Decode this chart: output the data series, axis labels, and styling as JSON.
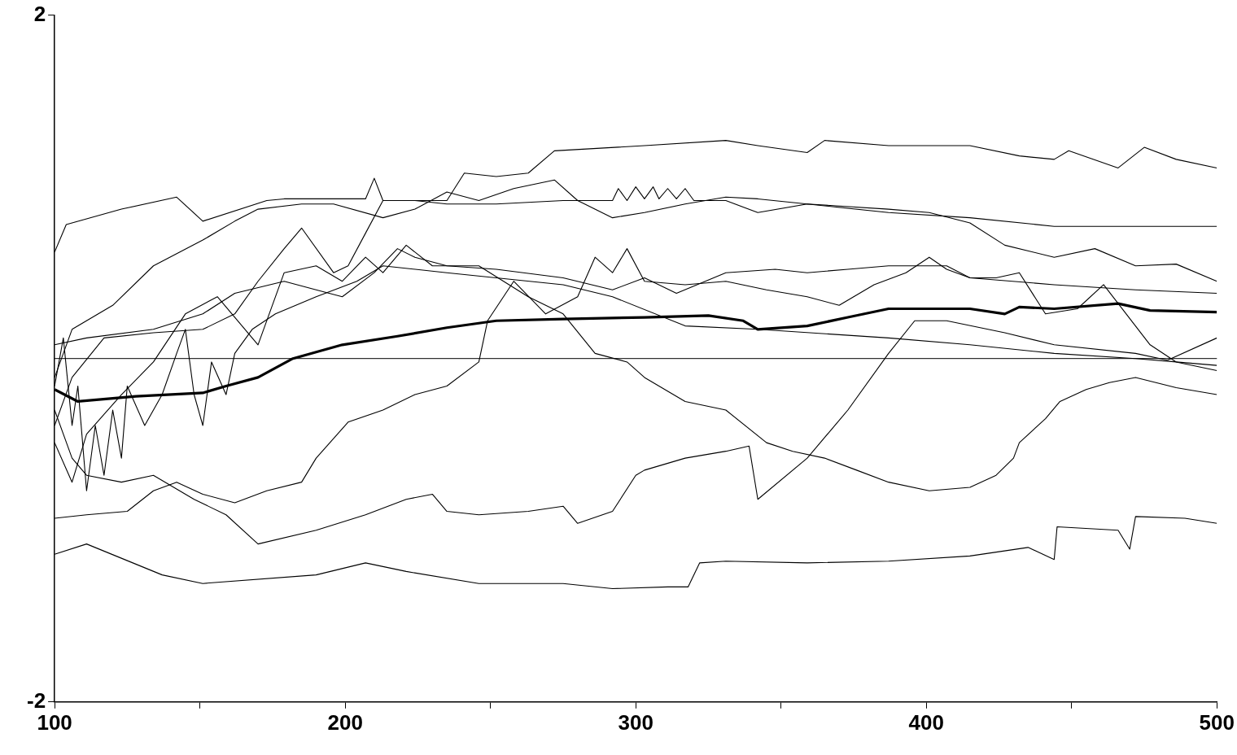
{
  "chart_data": {
    "type": "line",
    "xlim": [
      100,
      500
    ],
    "ylim": [
      -2,
      2
    ],
    "xticks": [
      100,
      {
        "value": 150,
        "label": null
      },
      200,
      {
        "value": 250,
        "label": null
      },
      300,
      {
        "value": 350,
        "label": null
      },
      400,
      {
        "value": 450,
        "label": null
      },
      500
    ],
    "yticks": [
      -2,
      2
    ],
    "grid": false,
    "legend": false,
    "marker": "none",
    "line_style": "solid",
    "ref_lines": [
      {
        "axis": "y",
        "value": 0,
        "color": "#000000"
      }
    ],
    "series": [
      {
        "color": "#000000",
        "x": [
          100,
          108,
          128,
          151,
          159,
          170,
          182,
          199,
          218,
          235,
          252,
          275,
          303,
          325,
          337,
          342,
          359,
          373,
          387,
          415,
          427,
          432,
          444,
          466,
          477,
          500
        ],
        "values": [
          -0.18,
          -0.25,
          -0.22,
          -0.2,
          -0.16,
          -0.11,
          0,
          0.08,
          0.13,
          0.18,
          0.22,
          0.23,
          0.24,
          0.25,
          0.22,
          0.17,
          0.19,
          0.24,
          0.29,
          0.29,
          0.26,
          0.3,
          0.29,
          0.32,
          0.28,
          0.27
        ]
      },
      {
        "color": "#000000",
        "x": [
          100,
          111,
          137,
          151,
          190,
          207,
          221,
          246,
          275,
          292,
          311,
          318,
          322,
          331,
          359,
          387,
          415,
          435,
          444,
          445,
          466,
          470,
          472,
          489,
          500
        ],
        "values": [
          -1.14,
          -1.08,
          -1.26,
          -1.31,
          -1.26,
          -1.19,
          -1.24,
          -1.31,
          -1.31,
          -1.34,
          -1.33,
          -1.33,
          -1.19,
          -1.18,
          -1.19,
          -1.18,
          -1.15,
          -1.1,
          -1.17,
          -0.98,
          -1,
          -1.11,
          -0.92,
          -0.93,
          -0.96
        ]
      },
      {
        "color": "#000000",
        "x": [
          100,
          104,
          123,
          142,
          151,
          173,
          179,
          207,
          210,
          213,
          235,
          241,
          252,
          263,
          272,
          303,
          331,
          342,
          359,
          365,
          387,
          415,
          432,
          444,
          449,
          466,
          475,
          486,
          500
        ],
        "values": [
          0.62,
          0.78,
          0.87,
          0.94,
          0.8,
          0.92,
          0.93,
          0.93,
          1.05,
          0.92,
          0.92,
          1.08,
          1.06,
          1.08,
          1.21,
          1.24,
          1.27,
          1.24,
          1.2,
          1.27,
          1.24,
          1.24,
          1.18,
          1.16,
          1.21,
          1.11,
          1.23,
          1.16,
          1.11
        ]
      },
      {
        "color": "#000000",
        "x": [
          100,
          106,
          120,
          134,
          151,
          162,
          170,
          185,
          196,
          213,
          224,
          235,
          246,
          258,
          272,
          280,
          292,
          303,
          317,
          331,
          342,
          359,
          387,
          415,
          444,
          500
        ],
        "values": [
          -0.11,
          0.17,
          0.31,
          0.54,
          0.69,
          0.8,
          0.87,
          0.9,
          0.9,
          0.82,
          0.87,
          0.97,
          0.92,
          0.99,
          1.04,
          0.92,
          0.82,
          0.85,
          0.9,
          0.94,
          0.93,
          0.9,
          0.85,
          0.82,
          0.77,
          0.77
        ]
      },
      {
        "color": "#000000",
        "x": [
          100,
          106,
          117,
          134,
          151,
          162,
          170,
          179,
          185,
          196,
          201,
          207,
          213,
          224,
          235,
          252,
          275,
          292,
          294,
          297,
          300,
          303,
          306,
          308,
          311,
          314,
          317,
          320,
          331,
          342,
          359,
          387,
          401,
          415,
          427,
          444,
          458,
          472,
          486,
          500
        ],
        "values": [
          -0.39,
          -0.11,
          0.12,
          0.15,
          0.17,
          0.26,
          0.45,
          0.64,
          0.76,
          0.5,
          0.54,
          0.73,
          0.92,
          0.92,
          0.9,
          0.9,
          0.92,
          0.92,
          0.99,
          0.92,
          1,
          0.93,
          1,
          0.93,
          0.99,
          0.93,
          0.99,
          0.92,
          0.92,
          0.85,
          0.9,
          0.87,
          0.85,
          0.79,
          0.66,
          0.59,
          0.64,
          0.54,
          0.55,
          0.45
        ]
      },
      {
        "color": "#000000",
        "x": [
          100,
          111,
          134,
          151,
          162,
          179,
          190,
          199,
          210,
          218,
          224,
          235,
          252,
          275,
          292,
          303,
          314,
          331,
          348,
          359,
          373,
          387,
          407,
          415,
          444,
          472,
          500
        ],
        "values": [
          0.08,
          0.12,
          0.17,
          0.26,
          0.38,
          0.45,
          0.4,
          0.36,
          0.5,
          0.64,
          0.59,
          0.54,
          0.52,
          0.47,
          0.4,
          0.47,
          0.38,
          0.5,
          0.52,
          0.5,
          0.52,
          0.54,
          0.54,
          0.47,
          0.43,
          0.4,
          0.38
        ]
      },
      {
        "color": "#000000",
        "x": [
          100,
          106,
          111,
          123,
          134,
          145,
          156,
          170,
          179,
          190,
          199,
          207,
          213,
          221,
          230,
          246,
          263,
          275,
          286,
          297,
          303,
          317,
          331,
          345,
          354,
          365,
          376,
          387,
          401,
          415,
          424,
          430,
          432,
          441,
          446,
          455,
          463,
          472,
          486,
          500
        ],
        "values": [
          -0.49,
          -0.72,
          -0.44,
          -0.21,
          -0.02,
          0.26,
          0.36,
          0.08,
          0.5,
          0.54,
          0.45,
          0.59,
          0.5,
          0.66,
          0.54,
          0.54,
          0.36,
          0.26,
          0.03,
          -0.02,
          -0.11,
          -0.25,
          -0.3,
          -0.49,
          -0.54,
          -0.58,
          -0.65,
          -0.72,
          -0.77,
          -0.75,
          -0.68,
          -0.58,
          -0.49,
          -0.35,
          -0.25,
          -0.18,
          -0.14,
          -0.11,
          -0.17,
          -0.21
        ]
      },
      {
        "color": "#000000",
        "x": [
          100,
          111,
          125,
          134,
          142,
          151,
          162,
          173,
          185,
          190,
          201,
          213,
          224,
          235,
          246,
          249,
          258,
          269,
          280,
          286,
          292,
          297,
          303,
          317,
          331,
          345,
          359,
          370,
          382,
          393,
          401,
          407,
          415,
          424,
          432,
          441,
          452,
          461,
          477,
          486,
          500
        ],
        "values": [
          -0.93,
          -0.91,
          -0.89,
          -0.77,
          -0.72,
          -0.79,
          -0.84,
          -0.77,
          -0.72,
          -0.58,
          -0.37,
          -0.3,
          -0.21,
          -0.16,
          -0.02,
          0.22,
          0.45,
          0.26,
          0.36,
          0.59,
          0.5,
          0.64,
          0.45,
          0.43,
          0.45,
          0.4,
          0.36,
          0.31,
          0.43,
          0.5,
          0.59,
          0.52,
          0.47,
          0.47,
          0.5,
          0.26,
          0.29,
          0.43,
          0.08,
          -0.02,
          -0.07
        ]
      },
      {
        "color": "#000000",
        "x": [
          100,
          106,
          111,
          123,
          134,
          148,
          159,
          170,
          190,
          207,
          221,
          230,
          235,
          246,
          263,
          275,
          280,
          292,
          300,
          303,
          317,
          331,
          339,
          342,
          359,
          373,
          387,
          396,
          407,
          427,
          444,
          472,
          483,
          500
        ],
        "values": [
          -0.3,
          -0.58,
          -0.68,
          -0.72,
          -0.68,
          -0.82,
          -0.91,
          -1.08,
          -1,
          -0.91,
          -0.82,
          -0.79,
          -0.89,
          -0.91,
          -0.89,
          -0.86,
          -0.96,
          -0.89,
          -0.68,
          -0.65,
          -0.58,
          -0.54,
          -0.51,
          -0.82,
          -0.58,
          -0.3,
          0.03,
          0.22,
          0.22,
          0.15,
          0.08,
          0.03,
          -0.01,
          0.12
        ]
      },
      {
        "color": "#000000",
        "x": [
          100,
          103,
          106,
          108,
          111,
          114,
          117,
          120,
          123,
          125,
          131,
          137,
          142,
          145,
          148,
          151,
          154,
          159,
          162,
          168,
          176,
          190,
          204,
          213,
          235,
          275,
          292,
          317,
          342,
          387,
          415,
          444,
          472,
          486,
          500
        ],
        "values": [
          -0.16,
          0.12,
          -0.39,
          -0.16,
          -0.77,
          -0.39,
          -0.68,
          -0.3,
          -0.58,
          -0.16,
          -0.39,
          -0.21,
          0.03,
          0.17,
          -0.21,
          -0.39,
          -0.02,
          -0.21,
          0.03,
          0.17,
          0.26,
          0.36,
          0.45,
          0.54,
          0.5,
          0.43,
          0.36,
          0.19,
          0.17,
          0.12,
          0.08,
          0.03,
          0,
          -0.02,
          -0.04
        ]
      }
    ]
  }
}
